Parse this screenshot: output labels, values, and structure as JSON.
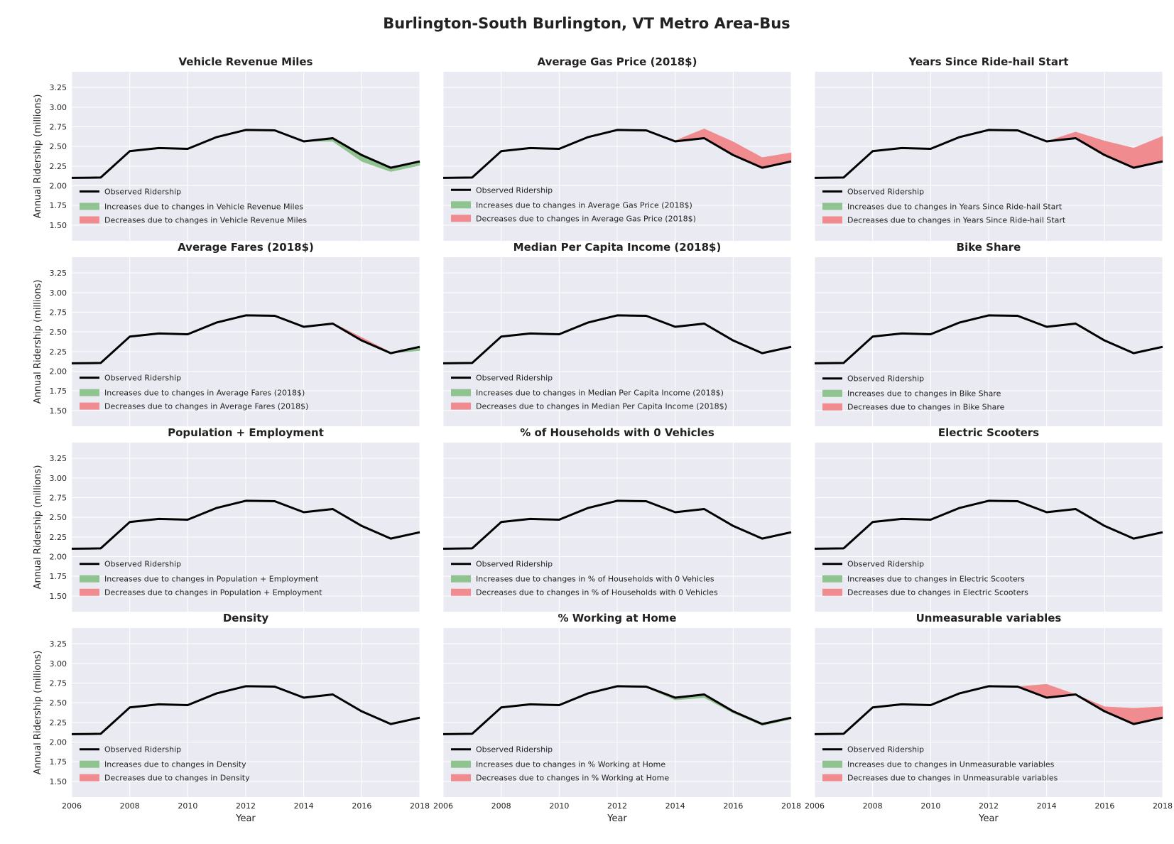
{
  "figure": {
    "title": "Burlington-South Burlington, VT Metro Area-Bus",
    "ylabel": "Annual Ridership (millions)",
    "xlabel": "Year",
    "legend_observed": "Observed Ridership",
    "legend_increase_prefix": "Increases due to changes in ",
    "legend_decrease_prefix": "Decreases due to changes in ",
    "colors": {
      "background": "#EAEAF2",
      "grid": "#FFFFFF",
      "observed": "#000000",
      "increase": "#8FC38F",
      "decrease": "#F08C8F"
    }
  },
  "chart_data": {
    "type": "line",
    "xlim": [
      2006,
      2018
    ],
    "ylim": [
      1.3,
      3.45
    ],
    "xticks": [
      2006,
      2008,
      2010,
      2012,
      2014,
      2016,
      2018
    ],
    "yticks": [
      1.5,
      1.75,
      2.0,
      2.25,
      2.5,
      2.75,
      3.0,
      3.25
    ],
    "ytick_labels": [
      "1.50",
      "1.75",
      "2.00",
      "2.25",
      "2.50",
      "2.75",
      "3.00",
      "3.25"
    ],
    "x": [
      2006,
      2007,
      2008,
      2009,
      2010,
      2011,
      2012,
      2013,
      2014,
      2015,
      2016,
      2017,
      2018
    ],
    "observed": [
      2.1,
      2.105,
      2.44,
      2.48,
      2.47,
      2.62,
      2.71,
      2.705,
      2.565,
      2.605,
      2.39,
      2.23,
      2.31
    ],
    "panels": [
      {
        "title": "Vehicle Revenue Miles",
        "effect": [
          0,
          0,
          0,
          0,
          0,
          0,
          0,
          0,
          0,
          0.04,
          0.08,
          0.05,
          0.05
        ],
        "legend_y": 2.0
      },
      {
        "title": "Average Gas Price (2018$)",
        "effect": [
          0,
          0,
          0,
          0,
          0,
          0,
          0,
          0,
          -0.01,
          -0.12,
          -0.17,
          -0.13,
          -0.11
        ],
        "legend_y": 2.02
      },
      {
        "title": "Years Since Ride-hail Start",
        "effect": [
          0,
          0,
          0,
          0,
          0,
          0,
          0,
          0,
          0,
          -0.08,
          -0.18,
          -0.25,
          -0.32
        ],
        "legend_y": 2.0
      },
      {
        "title": "Average Fares (2018$)",
        "effect": [
          0,
          0,
          0,
          0,
          0,
          0,
          0,
          -0.01,
          0,
          -0.01,
          -0.04,
          -0.01,
          0.05
        ],
        "legend_y": 1.99
      },
      {
        "title": "Median Per Capita Income (2018$)",
        "effect": [
          0,
          0,
          0,
          0,
          0,
          0,
          0,
          0,
          0,
          0,
          0,
          0,
          0
        ],
        "legend_y": 1.99
      },
      {
        "title": "Bike Share",
        "effect": [
          0,
          0,
          0,
          0,
          0,
          0,
          0,
          0,
          0,
          0,
          0,
          0,
          0
        ],
        "legend_y": 1.98
      },
      {
        "title": "Population + Employment",
        "effect": [
          0,
          0,
          0,
          0,
          0,
          0,
          0,
          0,
          0,
          0,
          0,
          0,
          0
        ],
        "legend_y": 1.98
      },
      {
        "title": "% of Households with 0 Vehicles",
        "effect": [
          0,
          0,
          0,
          0,
          0,
          0,
          0,
          0,
          0,
          0,
          0,
          0,
          0
        ],
        "legend_y": 1.98
      },
      {
        "title": "Electric Scooters",
        "effect": [
          0,
          0,
          0,
          0,
          0,
          0,
          0,
          0,
          0,
          0,
          0,
          0,
          0
        ],
        "legend_y": 1.98
      },
      {
        "title": "Density",
        "effect": [
          0,
          0,
          0,
          0,
          0,
          0,
          0,
          0,
          0,
          0,
          0,
          0,
          0
        ],
        "legend_y": 1.98
      },
      {
        "title": "% Working at Home",
        "effect": [
          0,
          0,
          0,
          0,
          0,
          0,
          0,
          0.01,
          0.03,
          0.04,
          0.02,
          0.02,
          0.02
        ],
        "legend_y": 1.98
      },
      {
        "title": "Unmeasurable variables",
        "effect": [
          0,
          0,
          0,
          0,
          0,
          0,
          0,
          0,
          -0.17,
          0,
          -0.06,
          -0.2,
          -0.14
        ],
        "legend_y": 1.98
      }
    ]
  }
}
